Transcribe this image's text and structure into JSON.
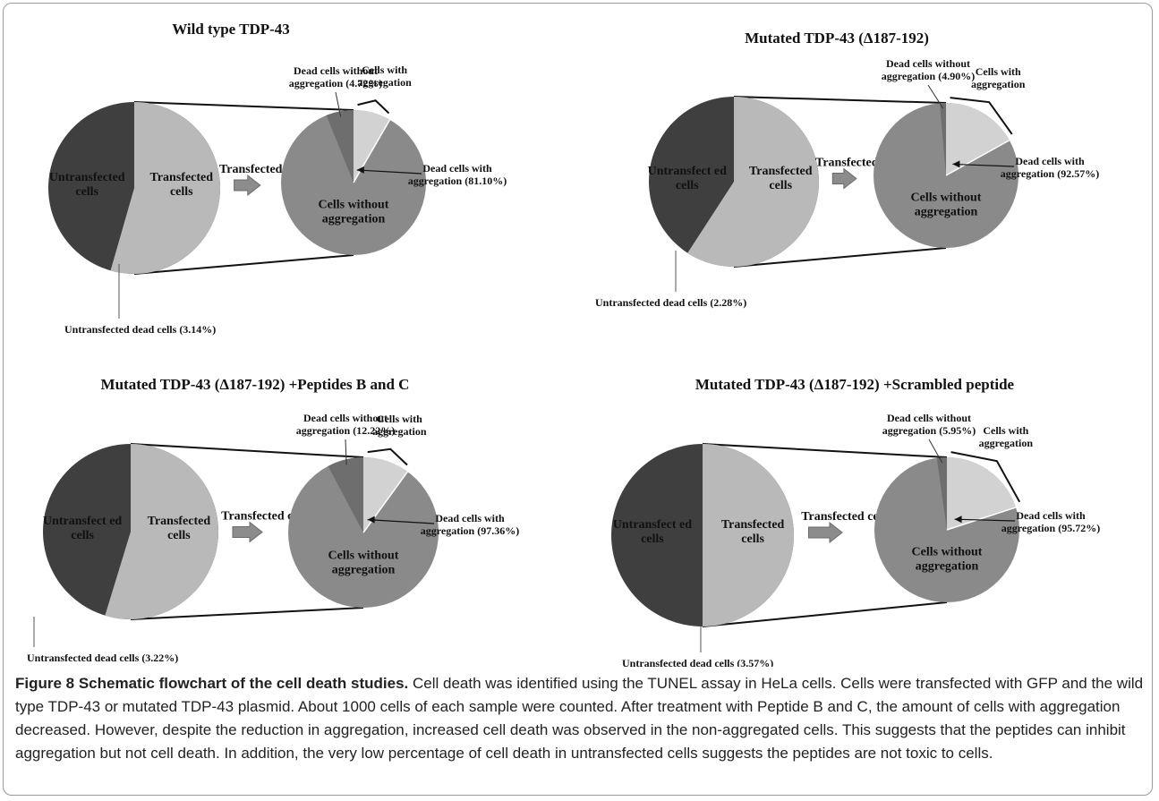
{
  "chart_data": [
    {
      "type": "pie",
      "title": "Wild type TDP-43",
      "overall": {
        "slices": [
          {
            "label": "Untransfected cells",
            "color": "#3f3f3f"
          },
          {
            "label": "Transfected cells",
            "color": "#b9b9b9"
          }
        ],
        "untransfected_dead_label": "Untransfected dead cells (3.14%)"
      },
      "arrow_label": "Transfected cells",
      "transfected": {
        "without_aggregation_label": "Cells without aggregation",
        "with_aggregation_label": "Cells with aggregation",
        "dead_without_label": "Dead cells without aggregation (4.72%)",
        "dead_with_label": "Dead cells with aggregation (81.10%)",
        "dead_without_pct": 4.72,
        "dead_with_pct": 81.1
      }
    },
    {
      "type": "pie",
      "title": "Mutated TDP-43 (Δ187-192)",
      "overall": {
        "slices": [
          {
            "label": "Untransfect ed cells",
            "color": "#3f3f3f"
          },
          {
            "label": "Transfected cells",
            "color": "#b9b9b9"
          }
        ],
        "untransfected_dead_label": "Untransfected dead cells (2.28%)"
      },
      "arrow_label": "Transfected cells",
      "transfected": {
        "without_aggregation_label": "Cells without aggregation",
        "with_aggregation_label": "Cells with aggregation",
        "dead_without_label": "Dead cells without aggregation (4.90%)",
        "dead_with_label": "Dead cells with aggregation (92.57%)",
        "dead_without_pct": 4.9,
        "dead_with_pct": 92.57
      }
    },
    {
      "type": "pie",
      "title": "Mutated TDP-43 (Δ187-192) +Peptides B and C",
      "overall": {
        "slices": [
          {
            "label": "Untransfect ed cells",
            "color": "#3f3f3f"
          },
          {
            "label": "Transfected cells",
            "color": "#b9b9b9"
          }
        ],
        "untransfected_dead_label": "Untransfected dead cells (3.22%)"
      },
      "arrow_label": "Transfected cells",
      "transfected": {
        "without_aggregation_label": "Cells without aggregation",
        "with_aggregation_label": "Cells with aggregation",
        "dead_without_label": "Dead cells without aggregation (12.22%)",
        "dead_with_label": "Dead cells with aggregation (97.36%)",
        "dead_without_pct": 12.22,
        "dead_with_pct": 97.36
      }
    },
    {
      "type": "pie",
      "title": "Mutated TDP-43 (Δ187-192) +Scrambled peptide",
      "overall": {
        "slices": [
          {
            "label": "Untransfect ed cells",
            "color": "#3f3f3f"
          },
          {
            "label": "Transfected cells",
            "color": "#b9b9b9"
          }
        ],
        "untransfected_dead_label": "Untransfected dead cells (3.57%)"
      },
      "arrow_label": "Transfected cells",
      "transfected": {
        "without_aggregation_label": "Cells without aggregation",
        "with_aggregation_label": "Cells with aggregation",
        "dead_without_label": "Dead cells without aggregation (5.95%)",
        "dead_with_label": "Dead cells with aggregation (95.72%)",
        "dead_without_pct": 5.95,
        "dead_with_pct": 95.72
      }
    }
  ],
  "colors": {
    "untransfected": "#3f3f3f",
    "transfected": "#b9b9b9",
    "without_aggregation": "#8a8a8a",
    "with_aggregation": "#d2d2d2",
    "dead_sector": "#6e6e6e",
    "arrow": "#8c8c8c"
  },
  "caption": {
    "label": "Figure 8 Schematic flowchart of the cell death studies.",
    "text": " Cell death was identified using the TUNEL assay in HeLa cells. Cells were transfected with GFP and the wild type TDP-43 or mutated TDP-43 plasmid. About 1000 cells of each sample were counted. After treatment with Peptide B and C, the amount of cells with aggregation decreased. However, despite the reduction in aggregation, increased cell death was observed in the non-aggregated cells. This suggests that the peptides can inhibit aggregation but not cell death. In addition, the very low percentage of cell death in untransfected cells suggests the peptides are not toxic to cells."
  }
}
